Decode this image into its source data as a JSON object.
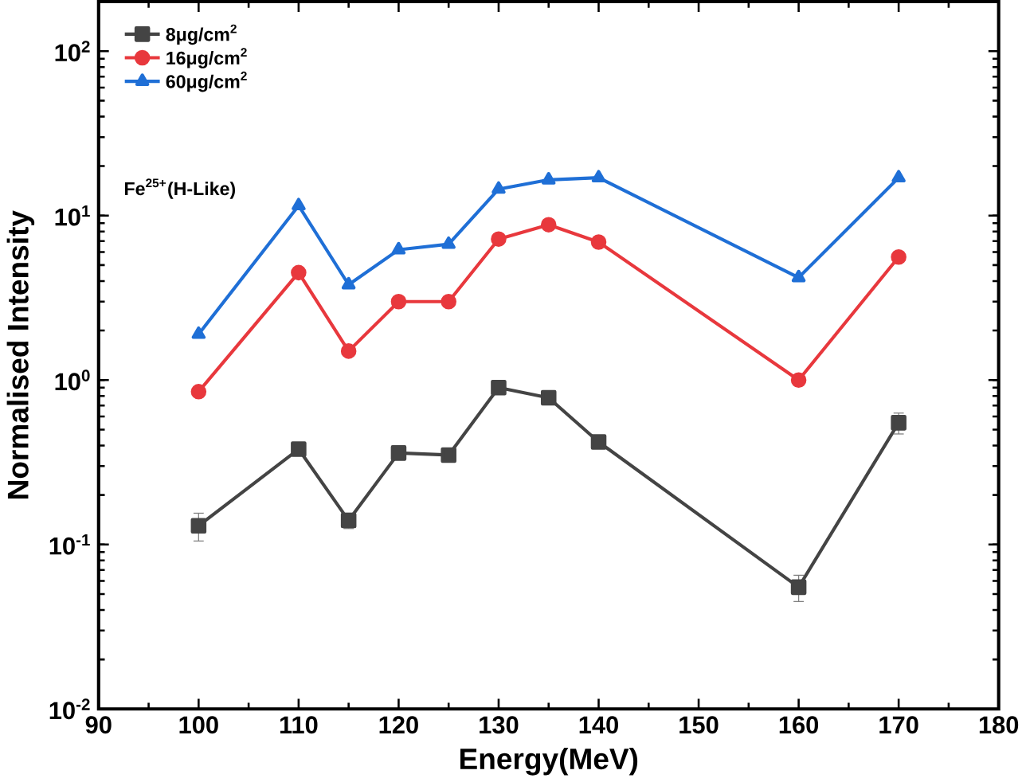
{
  "chart_data": {
    "type": "line",
    "xlabel": "Energy(MeV)",
    "ylabel": "Normalised Intensity",
    "log": "y",
    "legend": "top left",
    "line_style": "solid",
    "x": [
      100,
      110,
      115,
      120,
      125,
      130,
      135,
      140,
      160,
      170
    ],
    "xlim": [
      90,
      180
    ],
    "xticks": [
      90,
      100,
      110,
      120,
      130,
      140,
      150,
      160,
      170,
      180
    ],
    "ylim": [
      0.01,
      200
    ],
    "yticks": [
      {
        "value": 0.01,
        "label": "10$^{-2}$"
      },
      {
        "value": 0.1,
        "label": "10$^{-1}$"
      },
      {
        "value": 1,
        "label": "10$^{0}$"
      },
      {
        "value": 10,
        "label": "10$^{1}$"
      },
      {
        "value": 100,
        "label": "10$^{2}$"
      }
    ],
    "annotations": [
      "Fe$^{25+}$(H-Like)"
    ],
    "series": [
      {
        "name": "8μg/cm$^{2}$",
        "color": "#444444",
        "marker": "square",
        "values": [
          0.13,
          0.38,
          0.14,
          0.36,
          0.35,
          0.9,
          0.78,
          0.42,
          0.055,
          0.55
        ],
        "errors": [
          0.025,
          0.03,
          0.015,
          0.015,
          0.015,
          0.03,
          0.03,
          0.015,
          0.01,
          0.08
        ]
      },
      {
        "name": "16μg/cm$^{2}$",
        "color": "#e8383d",
        "marker": "circle",
        "values": [
          0.85,
          4.5,
          1.5,
          3.0,
          3.0,
          7.2,
          8.8,
          6.9,
          1.0,
          5.6
        ]
      },
      {
        "name": "60μg/cm$^{2}$",
        "color": "#1f6fd6",
        "marker": "triangle",
        "values": [
          1.9,
          11.5,
          3.8,
          6.2,
          6.7,
          14.5,
          16.5,
          17,
          4.2,
          17
        ]
      }
    ]
  }
}
